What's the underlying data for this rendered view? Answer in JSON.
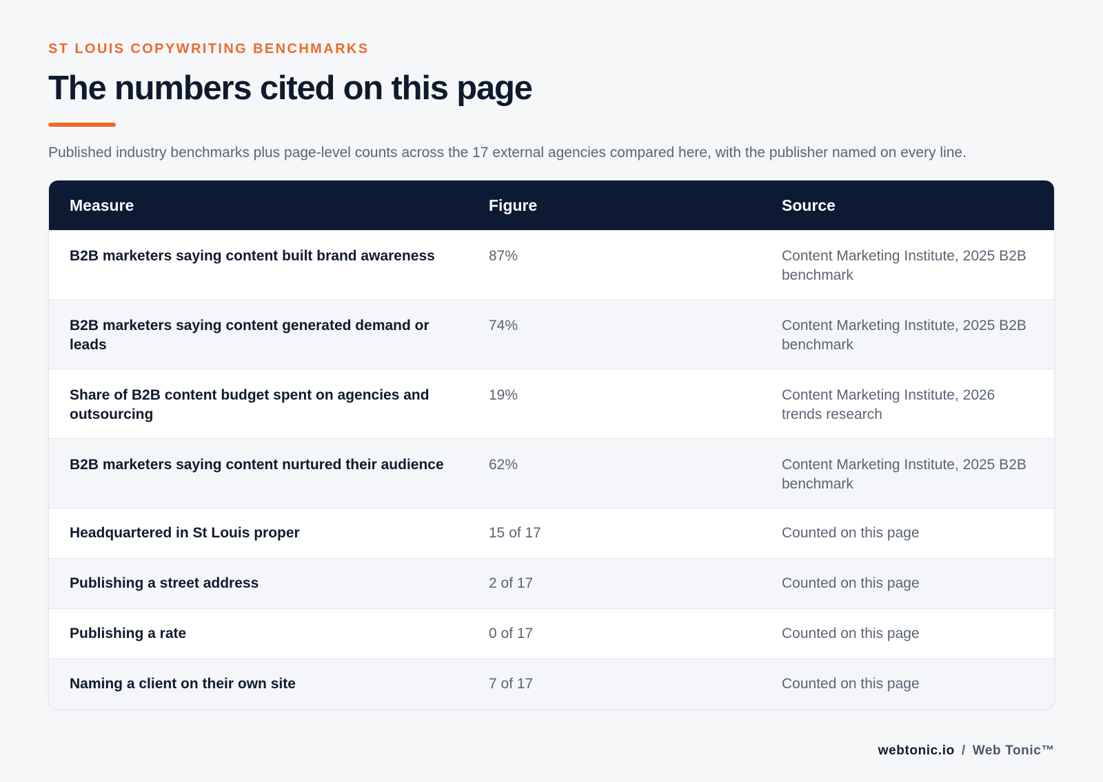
{
  "header": {
    "eyebrow": "ST LOUIS COPYWRITING BENCHMARKS",
    "title": "The numbers cited on this page",
    "subtitle": "Published industry benchmarks plus page-level counts across the 17 external agencies compared here, with the publisher named on every line.",
    "accent_color": "#ec6b2d"
  },
  "table": {
    "header_color": "#0c1a33",
    "columns": [
      "Measure",
      "Figure",
      "Source"
    ],
    "rows": [
      {
        "measure": "B2B marketers saying content built brand awareness",
        "figure": "87%",
        "source": "Content Marketing Institute, 2025 B2B benchmark"
      },
      {
        "measure": "B2B marketers saying content generated demand or leads",
        "figure": "74%",
        "source": "Content Marketing Institute, 2025 B2B benchmark"
      },
      {
        "measure": "Share of B2B content budget spent on agencies and outsourcing",
        "figure": "19%",
        "source": "Content Marketing Institute, 2026 trends research"
      },
      {
        "measure": "B2B marketers saying content nurtured their audience",
        "figure": "62%",
        "source": "Content Marketing Institute, 2025 B2B benchmark"
      },
      {
        "measure": "Headquartered in St Louis proper",
        "figure": "15 of 17",
        "source": "Counted on this page"
      },
      {
        "measure": "Publishing a street address",
        "figure": "2 of 17",
        "source": "Counted on this page"
      },
      {
        "measure": "Publishing a rate",
        "figure": "0 of 17",
        "source": "Counted on this page"
      },
      {
        "measure": "Naming a client on their own site",
        "figure": "7 of 17",
        "source": "Counted on this page"
      }
    ]
  },
  "footer": {
    "domain": "webtonic.io",
    "separator": "/",
    "brand": "Web Tonic™"
  }
}
